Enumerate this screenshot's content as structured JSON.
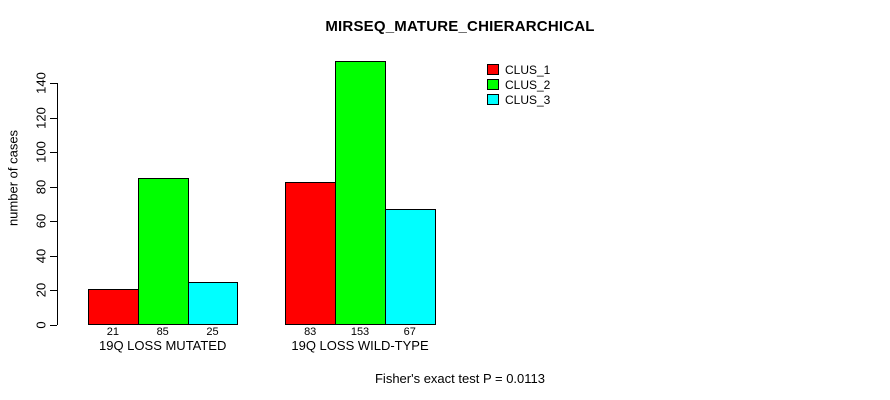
{
  "chart_data": {
    "type": "bar",
    "title": "MIRSEQ_MATURE_CHIERARCHICAL",
    "ylabel": "number of cases",
    "xlabel": "",
    "categories": [
      "19Q LOSS MUTATED",
      "19Q LOSS WILD-TYPE"
    ],
    "series": [
      {
        "name": "CLUS_1",
        "color": "#FF0000",
        "values": [
          21,
          83
        ]
      },
      {
        "name": "CLUS_2",
        "color": "#00FF00",
        "values": [
          85,
          153
        ]
      },
      {
        "name": "CLUS_3",
        "color": "#00FFFF",
        "values": [
          25,
          67
        ]
      }
    ],
    "yticks": [
      0,
      20,
      40,
      60,
      80,
      100,
      120,
      140
    ],
    "ylim": [
      0,
      155
    ],
    "grid": false,
    "legend_position": "top-right",
    "bar_value_labels_shown": true,
    "footer": "Fisher's exact test P = 0.0113"
  }
}
